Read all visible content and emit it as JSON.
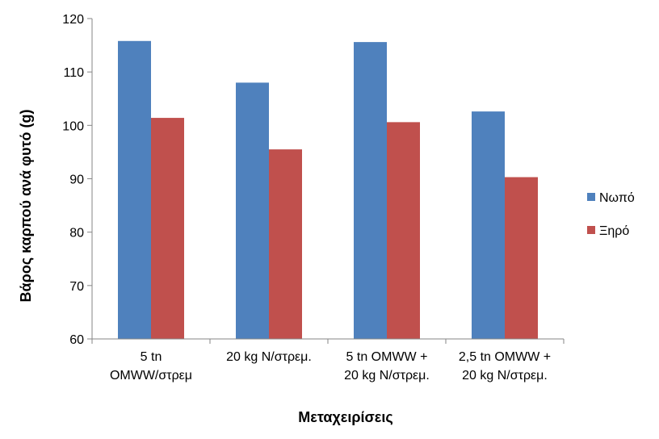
{
  "chart_data": {
    "type": "bar",
    "categories": [
      [
        "5 tn",
        "OMWW/στρεμ"
      ],
      [
        "20 kg N/στρεμ."
      ],
      [
        "5 tn OMWW +",
        "20 kg N/στρεμ."
      ],
      [
        "2,5 tn OMWW +",
        "20 kg N/στρεμ."
      ]
    ],
    "series": [
      {
        "name": "Νωπό",
        "color": "#4F81BD",
        "values": [
          115.8,
          108.0,
          115.6,
          102.6
        ]
      },
      {
        "name": "Ξηρό",
        "color": "#C0504D",
        "values": [
          101.4,
          95.5,
          100.6,
          90.3
        ]
      }
    ],
    "xlabel": "Μεταχειρίσεις",
    "ylabel": "Βάρος καρπού ανά φυτό (g)",
    "ylim": [
      60,
      120
    ],
    "yticks": [
      60,
      70,
      80,
      90,
      100,
      110,
      120
    ],
    "grid": false,
    "legend_position": "right"
  }
}
